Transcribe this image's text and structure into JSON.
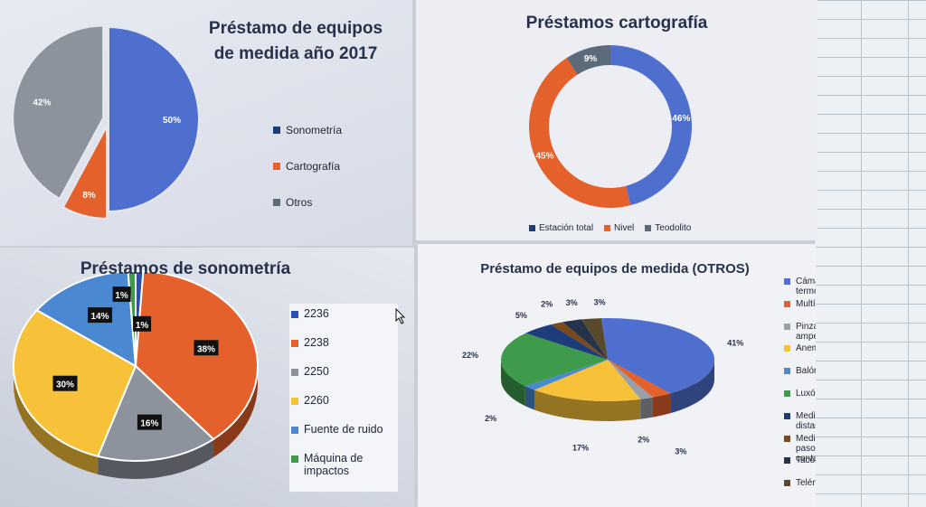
{
  "colors": {
    "blue": "#4f6fce",
    "orange": "#e4612b",
    "gray": "#8d939c",
    "yellow": "#f7c23a",
    "lightblue": "#4a89d2",
    "green": "#3f9b4c",
    "darkblue": "#1d3c7a",
    "darkgray": "#5b6b7a",
    "brown": "#7a4a1c",
    "darkbrown": "#5a4a2c"
  },
  "chart_data": [
    {
      "type": "pie",
      "title": "Préstamo de equipos de medida año 2017",
      "categories": [
        "Sonometría",
        "Cartografía",
        "Otros"
      ],
      "values": [
        50,
        8,
        42
      ],
      "labels": [
        "50%",
        "8%",
        "42%"
      ],
      "legend": "right"
    },
    {
      "type": "pie",
      "variant": "doughnut",
      "title": "Préstamos cartografía",
      "categories": [
        "Estación total",
        "Nivel",
        "Teodolito"
      ],
      "values": [
        46,
        45,
        9
      ],
      "labels": [
        "46%",
        "45%",
        "9%"
      ],
      "legend": "bottom"
    },
    {
      "type": "pie",
      "variant": "3d",
      "title": "Préstamos de sonometría",
      "categories": [
        "2236",
        "2238",
        "2250",
        "2260",
        "Fuente de ruido",
        "Máquina de impactos"
      ],
      "values": [
        1,
        38,
        16,
        30,
        14,
        1
      ],
      "labels": [
        "1%",
        "38%",
        "16%",
        "30%",
        "14%",
        "1%"
      ],
      "legend": "right"
    },
    {
      "type": "pie",
      "variant": "3d",
      "title": "Préstamo de equipos de medida (OTROS)",
      "categories": [
        "Cámara termográfica",
        "Multímetro",
        "Pinza amperimétrica",
        "Anemómetro",
        "Balómetro",
        "Luxómetro",
        "Medidor de distancias",
        "Medidor de paso y contacto",
        "Tacómetro",
        "Telémetro"
      ],
      "values": [
        41,
        3,
        2,
        17,
        2,
        22,
        5,
        2,
        3,
        3
      ],
      "labels": [
        "41%",
        "3%",
        "2%",
        "17%",
        "2%",
        "22%",
        "5%",
        "2%",
        "3%",
        "3%"
      ],
      "legend": "right"
    }
  ]
}
